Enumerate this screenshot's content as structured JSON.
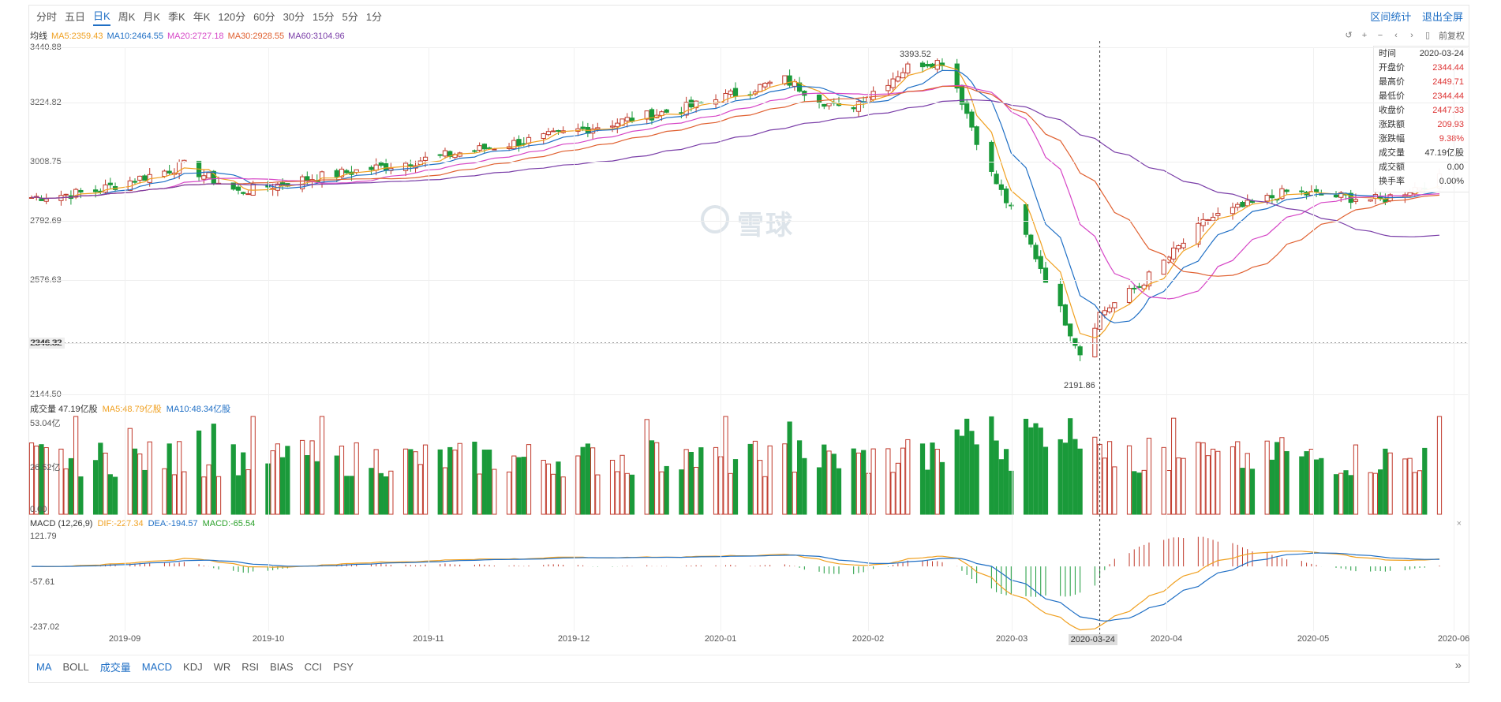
{
  "period_tabs": [
    {
      "label": "分时",
      "active": false
    },
    {
      "label": "五日",
      "active": false
    },
    {
      "label": "日K",
      "active": true
    },
    {
      "label": "周K",
      "active": false
    },
    {
      "label": "月K",
      "active": false
    },
    {
      "label": "季K",
      "active": false
    },
    {
      "label": "年K",
      "active": false
    },
    {
      "label": "120分",
      "active": false
    },
    {
      "label": "60分",
      "active": false
    },
    {
      "label": "30分",
      "active": false
    },
    {
      "label": "15分",
      "active": false
    },
    {
      "label": "5分",
      "active": false
    },
    {
      "label": "1分",
      "active": false
    }
  ],
  "top_links": {
    "range_stats": "区间统计",
    "exit_fullscreen": "退出全屏"
  },
  "ma_legend": [
    {
      "text": "均线",
      "color": "#333333"
    },
    {
      "text": "MA5:2359.43",
      "color": "#f0a020"
    },
    {
      "text": "MA10:2464.55",
      "color": "#1f6fc5"
    },
    {
      "text": "MA20:2727.18",
      "color": "#d646c6"
    },
    {
      "text": "MA30:2928.55",
      "color": "#e06030"
    },
    {
      "text": "MA60:3104.96",
      "color": "#7a3ea8"
    }
  ],
  "controls": {
    "adjust_label": "前复权",
    "icons": [
      "undo-icon",
      "zoom-in-icon",
      "zoom-out-icon",
      "arrow-left-icon",
      "arrow-right-icon",
      "lock-icon"
    ]
  },
  "price_axis": [
    "3440.88",
    "3224.82",
    "3008.75",
    "2792.69",
    "2576.63",
    "2346.32",
    "2144.50"
  ],
  "current_value_label": "2346.32",
  "high_label": "3393.52",
  "low_label": "2191.86",
  "watermark": "雪球",
  "info_box": [
    {
      "k": "时间",
      "v": "2020-03-24",
      "red": false
    },
    {
      "k": "开盘价",
      "v": "2344.44",
      "red": true
    },
    {
      "k": "最高价",
      "v": "2449.71",
      "red": true
    },
    {
      "k": "最低价",
      "v": "2344.44",
      "red": true
    },
    {
      "k": "收盘价",
      "v": "2447.33",
      "red": true
    },
    {
      "k": "涨跌额",
      "v": "209.93",
      "red": true
    },
    {
      "k": "涨跌幅",
      "v": "9.38%",
      "red": true
    },
    {
      "k": "成交量",
      "v": "47.19亿股",
      "red": false
    },
    {
      "k": "成交额",
      "v": "0.00",
      "red": false
    },
    {
      "k": "换手率",
      "v": "0.00%",
      "red": false
    }
  ],
  "volume_legend": [
    {
      "text": "成交量 47.19亿股",
      "color": "#333333"
    },
    {
      "text": "MA5:48.79亿股",
      "color": "#f0a020"
    },
    {
      "text": "MA10:48.34亿股",
      "color": "#1f6fc5"
    }
  ],
  "volume_axis": [
    "53.04亿",
    "26.52亿",
    "0.00"
  ],
  "macd_legend": [
    {
      "text": "MACD (12,26,9)",
      "color": "#333333"
    },
    {
      "text": "DIF:-227.34",
      "color": "#f0a020"
    },
    {
      "text": "DEA:-194.57",
      "color": "#1f6fc5"
    },
    {
      "text": "MACD:-65.54",
      "color": "#2aa02a"
    }
  ],
  "macd_axis": [
    "121.79",
    "-57.61",
    "-237.02"
  ],
  "x_axis": [
    "2019-09",
    "2019-10",
    "2019-11",
    "2019-12",
    "2020-01",
    "2020-02",
    "2020-03",
    "2020-04",
    "2020-05",
    "2020-06"
  ],
  "crosshair_date": "2020-03-24",
  "indicator_tabs": [
    {
      "label": "MA",
      "active": true
    },
    {
      "label": "BOLL",
      "active": false
    },
    {
      "label": "成交量",
      "active": true
    },
    {
      "label": "MACD",
      "active": true
    },
    {
      "label": "KDJ",
      "active": false
    },
    {
      "label": "WR",
      "active": false
    },
    {
      "label": "RSI",
      "active": false
    },
    {
      "label": "BIAS",
      "active": false
    },
    {
      "label": "CCI",
      "active": false
    },
    {
      "label": "PSY",
      "active": false
    }
  ],
  "expand_icon": "»",
  "close_icon": "×",
  "chart_data": {
    "type": "candlestick",
    "colors": {
      "up": "#c0392b",
      "down": "#1a9a3a",
      "ma5": "#f0a020",
      "ma10": "#1f6fc5",
      "ma20": "#d646c6",
      "ma30": "#e06030",
      "ma60": "#7a3ea8"
    },
    "ylim": [
      2144.5,
      3440.88
    ],
    "x_range": [
      "2019-08-20",
      "2020-06-01"
    ],
    "anchors": [
      {
        "date": "2019-08-20",
        "close": 2880
      },
      {
        "date": "2019-09-01",
        "close": 2900
      },
      {
        "date": "2019-09-20",
        "close": 3000
      },
      {
        "date": "2019-10-01",
        "close": 2900
      },
      {
        "date": "2019-10-15",
        "close": 2950
      },
      {
        "date": "2019-11-01",
        "close": 3000
      },
      {
        "date": "2019-12-01",
        "close": 3100
      },
      {
        "date": "2020-01-01",
        "close": 3220
      },
      {
        "date": "2020-01-20",
        "close": 3320
      },
      {
        "date": "2020-02-01",
        "close": 3200
      },
      {
        "date": "2020-02-15",
        "close": 3380
      },
      {
        "date": "2020-02-22",
        "close": 3390
      },
      {
        "date": "2020-03-01",
        "close": 3000
      },
      {
        "date": "2020-03-10",
        "close": 2700
      },
      {
        "date": "2020-03-20",
        "close": 2300
      },
      {
        "date": "2020-03-24",
        "close": 2447
      },
      {
        "date": "2020-04-01",
        "close": 2550
      },
      {
        "date": "2020-04-15",
        "close": 2800
      },
      {
        "date": "2020-05-01",
        "close": 2900
      },
      {
        "date": "2020-05-20",
        "close": 2870
      },
      {
        "date": "2020-06-01",
        "close": 2950
      }
    ]
  }
}
